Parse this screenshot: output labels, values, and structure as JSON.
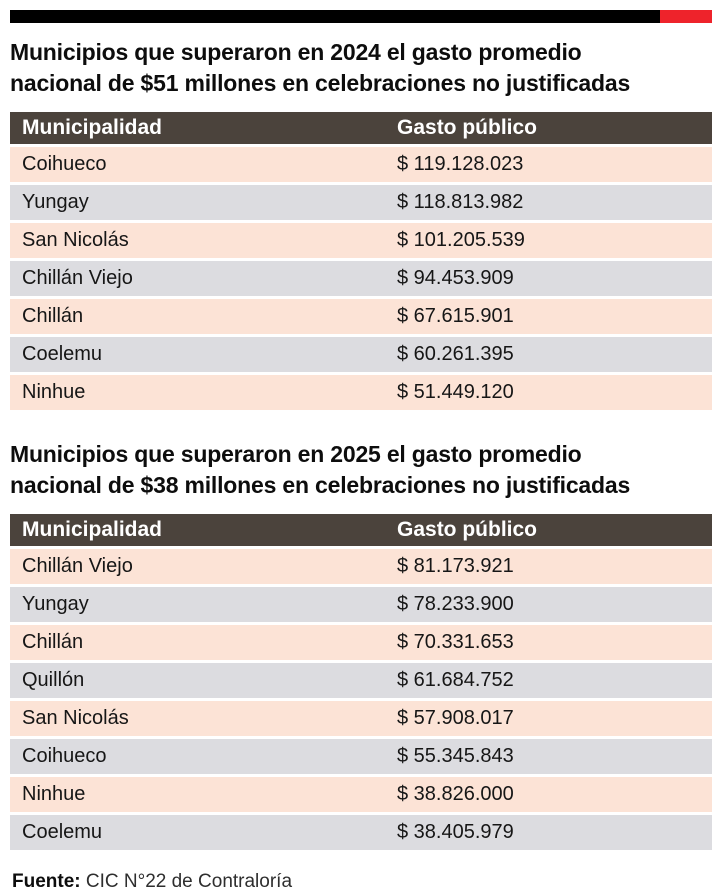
{
  "brand_bar": {
    "black": "#000000",
    "red": "#ee232b"
  },
  "colors": {
    "header_bg": "#4b433c",
    "header_text": "#ffffff",
    "row_pink": "#fce3d6",
    "row_gray": "#dcdce0",
    "title_text": "#0d0d0d",
    "accent_red": "#ee232b"
  },
  "tables": [
    {
      "title": "Municipios que superaron en 2024 el gasto promedio nacional de $51 millones en celebraciones no justificadas",
      "title_lines": [
        "Municipios que superaron en 2024 el gasto promedio",
        "nacional de $51 millones en celebraciones no justificadas"
      ],
      "columns": [
        "Municipalidad",
        "Gasto público"
      ],
      "rows": [
        [
          "Coihueco",
          "$ 119.128.023"
        ],
        [
          "Yungay",
          "$ 118.813.982"
        ],
        [
          "San Nicolás",
          "$ 101.205.539"
        ],
        [
          "Chillán Viejo",
          "$ 94.453.909"
        ],
        [
          "Chillán",
          "$ 67.615.901"
        ],
        [
          "Coelemu",
          "$ 60.261.395"
        ],
        [
          "Ninhue",
          "$ 51.449.120"
        ]
      ]
    },
    {
      "title": "Municipios que superaron en 2025 el gasto promedio nacional de $38 millones en celebraciones no justificadas",
      "title_lines": [
        "Municipios que superaron en 2025 el gasto promedio",
        "nacional de $38 millones en celebraciones no justificadas"
      ],
      "columns": [
        "Municipalidad",
        "Gasto público"
      ],
      "rows": [
        [
          "Chillán Viejo",
          "$ 81.173.921"
        ],
        [
          "Yungay",
          "$ 78.233.900"
        ],
        [
          "Chillán",
          "$ 70.331.653"
        ],
        [
          "Quillón",
          "$ 61.684.752"
        ],
        [
          "San Nicolás",
          "$ 57.908.017"
        ],
        [
          "Coihueco",
          "$ 55.345.843"
        ],
        [
          "Ninhue",
          "$ 38.826.000"
        ],
        [
          "Coelemu",
          "$ 38.405.979"
        ]
      ]
    }
  ],
  "footer": {
    "label": "Fuente:",
    "text": " CIC N°22 de Contraloría"
  },
  "chart_data": [
    {
      "type": "table",
      "title": "Municipios que superaron en 2024 el gasto promedio nacional de $51 millones en celebraciones no justificadas",
      "columns": [
        "Municipalidad",
        "Gasto público"
      ],
      "categories": [
        "Coihueco",
        "Yungay",
        "San Nicolás",
        "Chillán Viejo",
        "Chillán",
        "Coelemu",
        "Ninhue"
      ],
      "values": [
        119128023,
        118813982,
        101205539,
        94453909,
        67615901,
        60261395,
        51449120
      ],
      "value_unit": "CLP",
      "national_average_reference": 51000000
    },
    {
      "type": "table",
      "title": "Municipios que superaron en 2025 el gasto promedio nacional de $38 millones en celebraciones no justificadas",
      "columns": [
        "Municipalidad",
        "Gasto público"
      ],
      "categories": [
        "Chillán Viejo",
        "Yungay",
        "Chillán",
        "Quillón",
        "San Nicolás",
        "Coihueco",
        "Ninhue",
        "Coelemu"
      ],
      "values": [
        81173921,
        78233900,
        70331653,
        61684752,
        57908017,
        55345843,
        38826000,
        38405979
      ],
      "value_unit": "CLP",
      "national_average_reference": 38000000
    }
  ]
}
